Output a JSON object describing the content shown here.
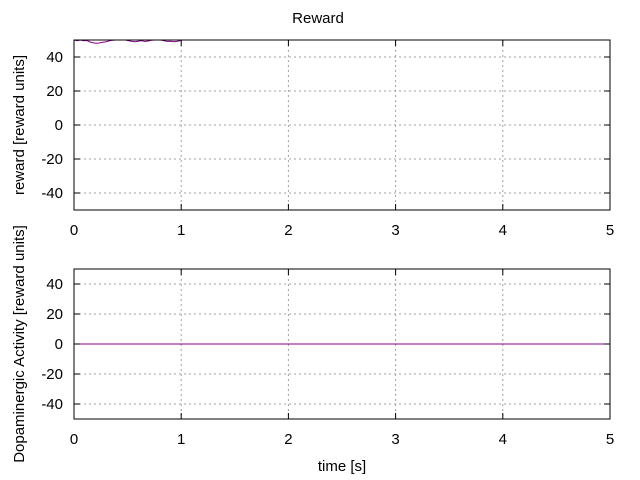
{
  "chart_data": [
    {
      "type": "line",
      "title": "Reward",
      "xlabel": "",
      "ylabel": "reward [reward units]",
      "xlim": [
        0,
        5
      ],
      "ylim": [
        -50,
        50
      ],
      "xticks": [
        0,
        1,
        2,
        3,
        4,
        5
      ],
      "yticks": [
        -40,
        -20,
        0,
        20,
        40
      ],
      "grid": true,
      "color": "#8b008b",
      "series": [
        {
          "x": [
            0.0,
            0.03,
            0.06,
            0.09,
            0.12,
            0.15,
            0.18,
            0.21,
            0.24,
            0.27,
            0.3,
            0.33,
            0.36,
            0.39,
            0.42,
            0.45,
            0.48,
            0.51,
            0.54,
            0.57,
            0.6,
            0.63,
            0.66,
            0.69,
            0.72,
            0.75,
            0.78,
            0.81,
            0.84,
            0.87,
            0.9,
            0.93,
            0.96,
            0.99,
            1.0
          ],
          "y": [
            50,
            49.6,
            50,
            49.5,
            49.7,
            48.8,
            48.3,
            48.1,
            48.3,
            48.7,
            49.0,
            49.5,
            49.8,
            50,
            50,
            50,
            50,
            49.5,
            49.2,
            49.0,
            49.3,
            49.6,
            49.1,
            49.4,
            49.8,
            50,
            50,
            50,
            49.6,
            49.2,
            49.3,
            49.0,
            49.2,
            49.6,
            50
          ]
        }
      ]
    },
    {
      "type": "line",
      "title": "",
      "xlabel": "time [s]",
      "ylabel": "Dopaminergic Activity [reward units]",
      "xlim": [
        0,
        5
      ],
      "ylim": [
        -50,
        50
      ],
      "xticks": [
        0,
        1,
        2,
        3,
        4,
        5
      ],
      "yticks": [
        -40,
        -20,
        0,
        20,
        40
      ],
      "grid": true,
      "color": "#8b008b",
      "series": [
        {
          "x": [
            0,
            5
          ],
          "y": [
            0,
            0
          ]
        }
      ]
    }
  ]
}
